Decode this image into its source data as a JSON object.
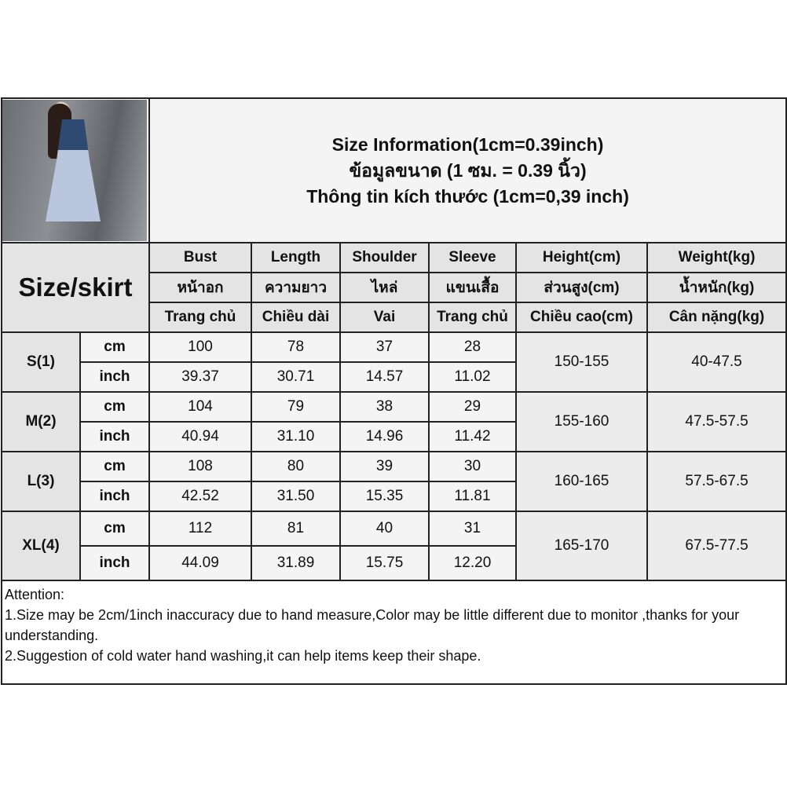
{
  "title_lines": [
    "Size Information(1cm=0.39inch)",
    "ข้อมูลขนาด (1 ซม. = 0.39 นิ้ว)",
    "Thông tin kích thước (1cm=0,39 inch)"
  ],
  "size_label": "Size/skirt",
  "headers": {
    "en": [
      "Bust",
      "Length",
      "Shoulder",
      "Sleeve",
      "Height(cm)",
      "Weight(kg)"
    ],
    "th": [
      "หน้าอก",
      "ความยาว",
      "ไหล่",
      "แขนเสื้อ",
      "ส่วนสูง(cm)",
      "น้ำหนัก(kg)"
    ],
    "vi": [
      "Trang chủ",
      "Chiều dài",
      "Vai",
      "Trang chủ",
      "Chiều cao(cm)",
      "Cân nặng(kg)"
    ]
  },
  "units": {
    "cm": "cm",
    "inch": "inch"
  },
  "sizes": [
    {
      "label": "S(1)",
      "cm": [
        "100",
        "78",
        "37",
        "28"
      ],
      "inch": [
        "39.37",
        "30.71",
        "14.57",
        "11.02"
      ],
      "height": "150-155",
      "weight": "40-47.5"
    },
    {
      "label": "M(2)",
      "cm": [
        "104",
        "79",
        "38",
        "29"
      ],
      "inch": [
        "40.94",
        "31.10",
        "14.96",
        "11.42"
      ],
      "height": "155-160",
      "weight": "47.5-57.5"
    },
    {
      "label": "L(3)",
      "cm": [
        "108",
        "80",
        "39",
        "30"
      ],
      "inch": [
        "42.52",
        "31.50",
        "15.35",
        "11.81"
      ],
      "height": "160-165",
      "weight": "57.5-67.5"
    },
    {
      "label": "XL(4)",
      "cm": [
        "112",
        "81",
        "40",
        "31"
      ],
      "inch": [
        "44.09",
        "31.89",
        "15.75",
        "12.20"
      ],
      "height": "165-170",
      "weight": "67.5-77.5"
    }
  ],
  "notes": [
    "Attention:",
    "1.Size may be 2cm/1inch inaccuracy due to hand measure,Color may be little different due to monitor ,thanks for your understanding.",
    "2.Suggestion of cold water hand washing,it can help items keep their shape."
  ]
}
